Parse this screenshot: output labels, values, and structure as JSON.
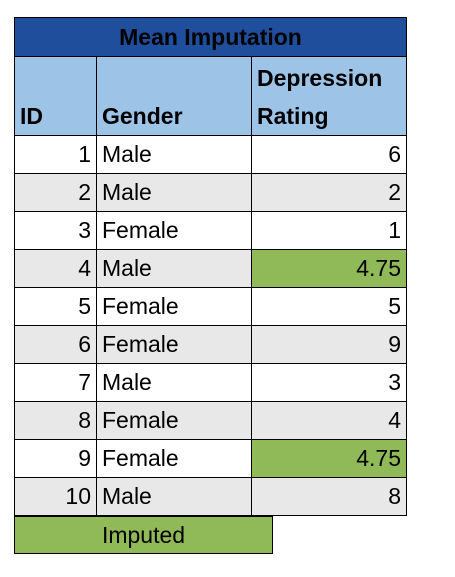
{
  "title": "Mean Imputation",
  "columns": {
    "id": "ID",
    "gender": "Gender",
    "rating_line1": "Depression",
    "rating_line2": "Rating"
  },
  "rows": [
    {
      "id": "1",
      "gender": "Male",
      "rating": "6",
      "imputed": false
    },
    {
      "id": "2",
      "gender": "Male",
      "rating": "2",
      "imputed": false
    },
    {
      "id": "3",
      "gender": "Female",
      "rating": "1",
      "imputed": false
    },
    {
      "id": "4",
      "gender": "Male",
      "rating": "4.75",
      "imputed": true
    },
    {
      "id": "5",
      "gender": "Female",
      "rating": "5",
      "imputed": false
    },
    {
      "id": "6",
      "gender": "Female",
      "rating": "9",
      "imputed": false
    },
    {
      "id": "7",
      "gender": "Male",
      "rating": "3",
      "imputed": false
    },
    {
      "id": "8",
      "gender": "Female",
      "rating": "4",
      "imputed": false
    },
    {
      "id": "9",
      "gender": "Female",
      "rating": "4.75",
      "imputed": true
    },
    {
      "id": "10",
      "gender": "Male",
      "rating": "8",
      "imputed": false
    }
  ],
  "legend": {
    "label": "Imputed",
    "color": "#8fba57"
  },
  "colors": {
    "title_bg": "#1f4e9c",
    "header_bg": "#9dc3e6",
    "alt_row_bg": "#e8e8e8",
    "imputed_bg": "#8fba57"
  }
}
